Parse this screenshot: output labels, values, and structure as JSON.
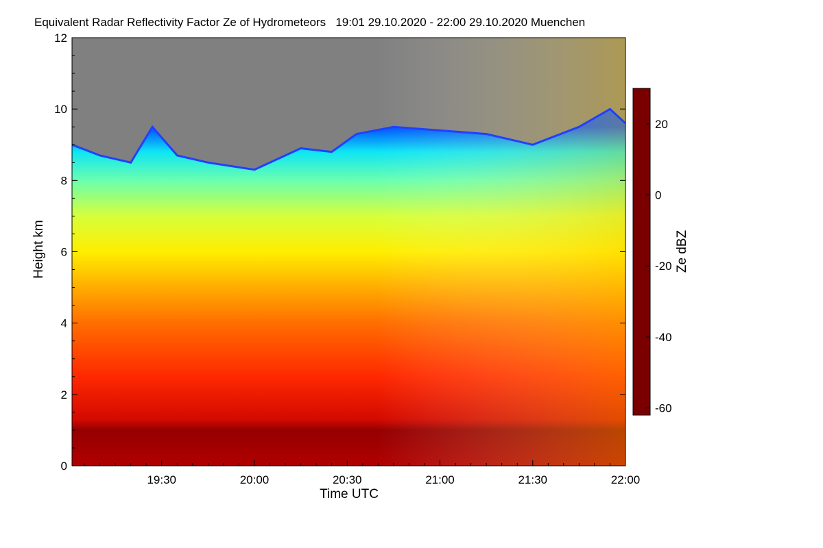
{
  "chart_data": {
    "type": "heatmap",
    "title": "Equivalent Radar Reflectivity Factor Ze of Hydrometeors   19:01 29.10.2020 - 22:00 29.10.2020 Muenchen",
    "xlabel": "Time UTC",
    "ylabel": "Height km",
    "colorbar_label": "Ze dBZ",
    "x_range": [
      "19:01",
      "22:00"
    ],
    "x_ticks": [
      "19:30",
      "20:00",
      "20:30",
      "21:00",
      "21:30",
      "22:00"
    ],
    "x_tick_minutes": [
      1170,
      1200,
      1230,
      1260,
      1290,
      1320
    ],
    "x_range_minutes": [
      1141,
      1320
    ],
    "ylim": [
      0,
      12
    ],
    "y_ticks": [
      0,
      2,
      4,
      6,
      8,
      10,
      12
    ],
    "colorbar_range": [
      -62,
      30
    ],
    "colorbar_ticks": [
      20,
      0,
      -20,
      -40,
      -60
    ],
    "no_data_color": "#808080",
    "colormap": [
      "#7a0000",
      "#c00000",
      "#ff2000",
      "#ff7a00",
      "#ffc800",
      "#ffff00",
      "#c8ff50",
      "#50ffc8",
      "#00e0ff",
      "#0080ff",
      "#0000ff",
      "#5050c0",
      "#808080"
    ],
    "echo_top_km": [
      {
        "time": "19:01",
        "top": 9.0
      },
      {
        "time": "19:10",
        "top": 8.7
      },
      {
        "time": "19:20",
        "top": 8.5
      },
      {
        "time": "19:27",
        "top": 9.5
      },
      {
        "time": "19:35",
        "top": 8.7
      },
      {
        "time": "19:45",
        "top": 8.5
      },
      {
        "time": "20:00",
        "top": 8.3
      },
      {
        "time": "20:15",
        "top": 8.9
      },
      {
        "time": "20:25",
        "top": 8.8
      },
      {
        "time": "20:33",
        "top": 9.3
      },
      {
        "time": "20:45",
        "top": 9.5
      },
      {
        "time": "21:00",
        "top": 9.4
      },
      {
        "time": "21:15",
        "top": 9.3
      },
      {
        "time": "21:30",
        "top": 9.0
      },
      {
        "time": "21:45",
        "top": 9.5
      },
      {
        "time": "21:55",
        "top": 10.0
      },
      {
        "time": "22:00",
        "top": 9.6
      }
    ],
    "layers_dBZ": [
      {
        "height_km": 0.0,
        "ze": 24
      },
      {
        "height_km": 1.0,
        "ze": 27
      },
      {
        "height_km": 1.3,
        "ze": 20
      },
      {
        "height_km": 2.5,
        "ze": 14
      },
      {
        "height_km": 4.0,
        "ze": 8
      },
      {
        "height_km": 5.0,
        "ze": 2
      },
      {
        "height_km": 6.0,
        "ze": -6
      },
      {
        "height_km": 7.0,
        "ze": -14
      },
      {
        "height_km": 8.0,
        "ze": -22
      },
      {
        "height_km": 8.8,
        "ze": -30
      },
      {
        "height_km": 9.5,
        "ze": -42
      }
    ]
  }
}
